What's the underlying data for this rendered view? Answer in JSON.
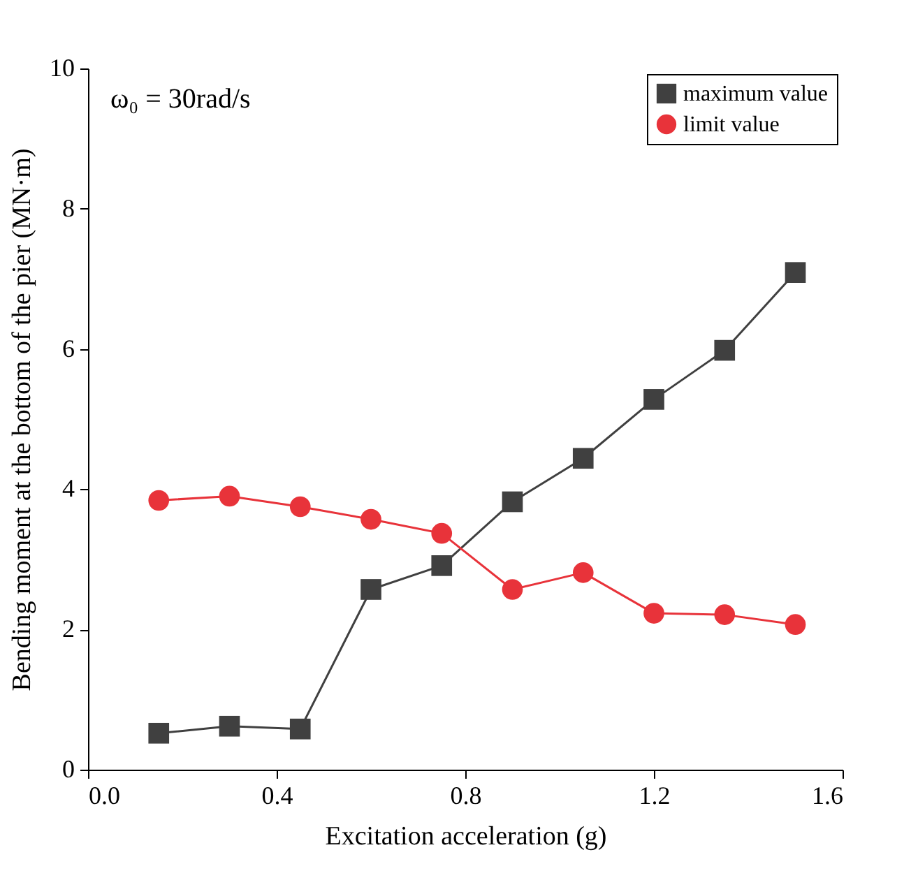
{
  "chart_data": {
    "type": "line",
    "xlabel": "Excitation acceleration (g)",
    "ylabel": "Bending moment at the bottom of the pier (MN·m)",
    "annotations": [
      "ω₀ = 30rad/s"
    ],
    "xlim": [
      0,
      1.6
    ],
    "xticks": [
      {
        "value": 0,
        "label": "0.0"
      },
      {
        "value": 0.4,
        "label": "0.4"
      },
      {
        "value": 0.8,
        "label": "0.8"
      },
      {
        "value": 1.2,
        "label": "1.2"
      },
      {
        "value": 1.6,
        "label": "1.6"
      }
    ],
    "ylim": [
      0,
      10
    ],
    "yticks": [
      0,
      2,
      4,
      6,
      8,
      10
    ],
    "grid": false,
    "legend": "top right",
    "line_style": "solid",
    "x": [
      0.15,
      0.3,
      0.45,
      0.6,
      0.75,
      0.9,
      1.05,
      1.2,
      1.35,
      1.5
    ],
    "series": [
      {
        "name": "maximum value",
        "color": "#404040",
        "marker": "square",
        "values": [
          0.52,
          0.62,
          0.58,
          2.57,
          2.91,
          3.82,
          4.44,
          5.28,
          5.98,
          7.09
        ]
      },
      {
        "name": "limit value",
        "color": "#e8333a",
        "marker": "circle",
        "values": [
          3.84,
          3.9,
          3.75,
          3.57,
          3.37,
          2.57,
          2.81,
          2.23,
          2.21,
          2.07
        ]
      }
    ]
  }
}
